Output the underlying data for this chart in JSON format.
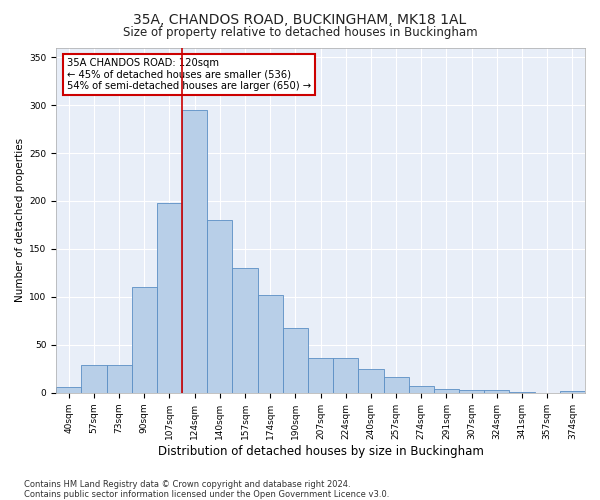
{
  "title_line1": "35A, CHANDOS ROAD, BUCKINGHAM, MK18 1AL",
  "title_line2": "Size of property relative to detached houses in Buckingham",
  "xlabel": "Distribution of detached houses by size in Buckingham",
  "ylabel": "Number of detached properties",
  "categories": [
    "40sqm",
    "57sqm",
    "73sqm",
    "90sqm",
    "107sqm",
    "124sqm",
    "140sqm",
    "157sqm",
    "174sqm",
    "190sqm",
    "207sqm",
    "224sqm",
    "240sqm",
    "257sqm",
    "274sqm",
    "291sqm",
    "307sqm",
    "324sqm",
    "341sqm",
    "357sqm",
    "374sqm"
  ],
  "values": [
    6,
    29,
    29,
    110,
    198,
    295,
    180,
    130,
    102,
    68,
    36,
    36,
    25,
    16,
    7,
    4,
    3,
    3,
    1,
    0,
    2
  ],
  "bar_color": "#b8cfe8",
  "bar_edge_color": "#5b8ec4",
  "background_color": "#e8eef8",
  "grid_color": "#ffffff",
  "vline_color": "#cc0000",
  "vline_x_index": 5,
  "annotation_text": "35A CHANDOS ROAD: 120sqm\n← 45% of detached houses are smaller (536)\n54% of semi-detached houses are larger (650) →",
  "annotation_box_color": "#ffffff",
  "annotation_box_edge": "#cc0000",
  "footer_line1": "Contains HM Land Registry data © Crown copyright and database right 2024.",
  "footer_line2": "Contains public sector information licensed under the Open Government Licence v3.0.",
  "ylim": [
    0,
    360
  ],
  "yticks": [
    0,
    50,
    100,
    150,
    200,
    250,
    300,
    350
  ],
  "title1_fontsize": 10,
  "title2_fontsize": 8.5,
  "ylabel_fontsize": 7.5,
  "xlabel_fontsize": 8.5,
  "tick_fontsize": 6.5,
  "footer_fontsize": 6.0
}
